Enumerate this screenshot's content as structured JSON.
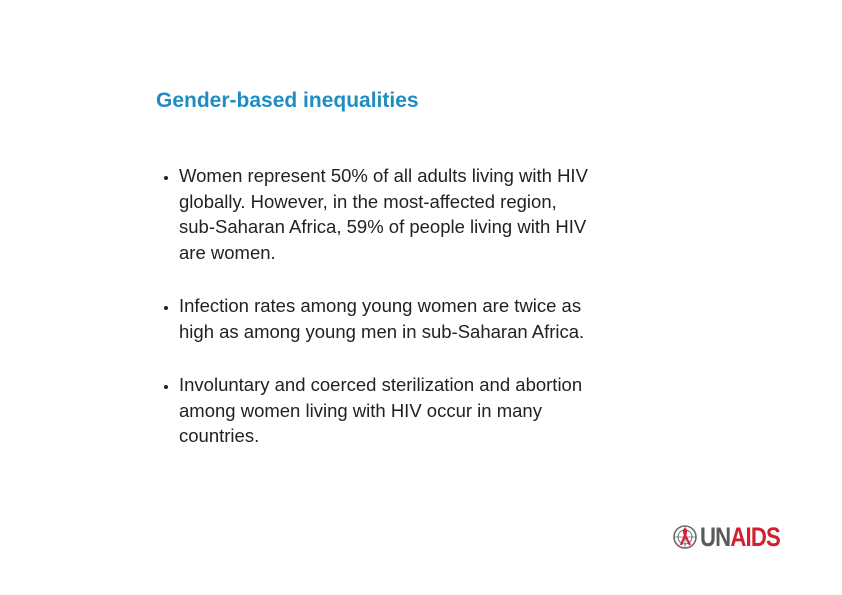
{
  "title": "Gender-based inequalities",
  "bullets": [
    {
      "lines": [
        "Women represent 50% of all adults living with HIV",
        "globally. However, in the most-affected region,",
        "sub-Saharan Africa, 59% of people living with HIV",
        "are women."
      ]
    },
    {
      "lines": [
        "Infection rates among young women are twice as",
        "high as among young men in sub-Saharan Africa."
      ]
    },
    {
      "lines": [
        "Involuntary and coerced sterilization and abortion",
        "among women living with HIV occur in many",
        "countries."
      ]
    }
  ],
  "logo": {
    "parts": [
      "UN",
      "AIDS"
    ]
  }
}
